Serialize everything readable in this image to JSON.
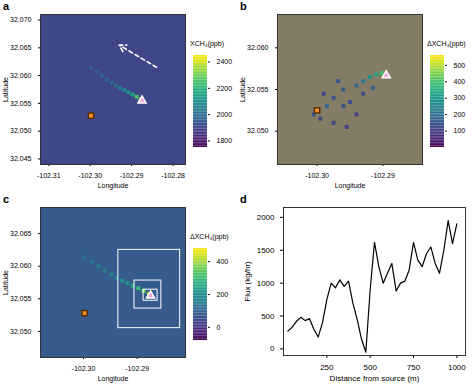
{
  "chart_data": [
    {
      "panel": "a",
      "type": "map",
      "xlabel": "Longitude",
      "ylabel": "Latitude",
      "xlim": [
        -102.312,
        -102.277
      ],
      "xticks": [
        -102.31,
        {
          "value": -102.3,
          "label": "-102.30"
        },
        -102.29,
        -102.28
      ],
      "ylim": [
        32.044,
        32.071
      ],
      "yticks": [
        32.045,
        {
          "value": 32.05,
          "label": "32.050"
        },
        32.055,
        {
          "value": 32.06,
          "label": "32.060"
        },
        32.065,
        {
          "value": 32.07,
          "label": "32.070"
        }
      ],
      "colorbar": {
        "label": "XCH₄(ppb)",
        "lim": [
          1750,
          2450
        ],
        "ticks": [
          1800,
          2000,
          2200,
          2400
        ]
      },
      "background": 1900,
      "points": {
        "x": [
          -102.2878,
          -102.2888,
          -102.2898,
          -102.2908,
          -102.2918,
          -102.2928,
          -102.2938,
          -102.2948,
          -102.296,
          -102.2972,
          -102.2985,
          -102.2998
        ],
        "y": [
          32.0557,
          32.0562,
          32.0566,
          32.057,
          32.0574,
          32.0578,
          32.0582,
          32.0587,
          32.0593,
          32.06,
          32.0607,
          32.0614
        ],
        "values": [
          2350,
          2250,
          2150,
          2100,
          2050,
          2020,
          2000,
          1990,
          1980,
          1970,
          1960,
          1950
        ]
      },
      "source": {
        "x": -102.2998,
        "y": 32.0528
      },
      "detection": {
        "x": -102.2875,
        "y": 32.0555
      },
      "wind": {
        "x1": -102.284,
        "y1": 32.0615,
        "x2": -102.293,
        "y2": 32.0655
      }
    },
    {
      "panel": "b",
      "type": "map",
      "xlabel": "Longitude",
      "ylabel": "Latitude",
      "xlim": [
        -102.306,
        -102.284
      ],
      "xticks": [
        {
          "value": -102.3,
          "label": "-102.30"
        },
        -102.29
      ],
      "ylim": [
        32.046,
        32.064
      ],
      "yticks": [
        {
          "value": 32.05,
          "label": "32.050"
        },
        32.055,
        {
          "value": 32.06,
          "label": "32.060"
        }
      ],
      "colorbar": {
        "label": "ΔXCH₄(ppb)",
        "lim": [
          0,
          560
        ],
        "ticks": [
          100,
          200,
          300,
          400,
          500
        ]
      },
      "points": {
        "x": [
          -102.3005,
          -102.2995,
          -102.2985,
          -102.2975,
          -102.299,
          -102.296,
          -102.295,
          -102.294,
          -102.293,
          -102.292,
          -102.291,
          -102.2902,
          -102.2898,
          -102.294,
          -102.2975,
          -102.2955,
          -102.2968,
          -102.293,
          -102.2915,
          -102.296
        ],
        "y": [
          32.052,
          32.0515,
          32.053,
          32.054,
          32.0545,
          32.055,
          32.0535,
          32.0555,
          32.056,
          32.0565,
          32.0568,
          32.057,
          32.0567,
          32.052,
          32.051,
          32.0505,
          32.056,
          32.0545,
          32.0552,
          32.053
        ],
        "values": [
          150,
          120,
          180,
          140,
          110,
          160,
          130,
          200,
          230,
          280,
          330,
          380,
          420,
          100,
          120,
          110,
          150,
          130,
          170,
          140
        ]
      },
      "source": {
        "x": -102.3,
        "y": 32.0525
      },
      "detection": {
        "x": -102.2895,
        "y": 32.0567
      }
    },
    {
      "panel": "c",
      "type": "map",
      "xlabel": "Longitude",
      "ylabel": "Latitude",
      "xlim": [
        -102.308,
        -102.281
      ],
      "xticks": [
        {
          "value": -102.3,
          "label": "-102.30"
        },
        -102.29
      ],
      "ylim": [
        32.046,
        32.069
      ],
      "yticks": [
        {
          "value": 32.05,
          "label": "32.050"
        },
        32.055,
        {
          "value": 32.06,
          "label": "32.060"
        },
        32.065
      ],
      "colorbar": {
        "label": "ΔXCH₄(ppb)",
        "lim": [
          -80,
          480
        ],
        "ticks": [
          0,
          200,
          400
        ]
      },
      "background": 80,
      "points": {
        "x": [
          -102.2878,
          -102.2888,
          -102.2898,
          -102.2908,
          -102.2918,
          -102.2928,
          -102.2938,
          -102.2948,
          -102.296,
          -102.2972,
          -102.2985,
          -102.2998
        ],
        "y": [
          32.0557,
          32.0562,
          32.0566,
          32.057,
          32.0574,
          32.0578,
          32.0582,
          32.0587,
          32.0593,
          32.06,
          32.0607,
          32.0614
        ],
        "values": [
          420,
          360,
          300,
          260,
          220,
          200,
          180,
          170,
          160,
          150,
          140,
          130
        ]
      },
      "source": {
        "x": -102.2998,
        "y": 32.0528
      },
      "detection": {
        "x": -102.2875,
        "y": 32.0555
      },
      "boxes": [
        [
          -102.2935,
          32.0505,
          -102.282,
          32.0625
        ],
        [
          -102.2905,
          32.0535,
          -102.2855,
          32.0578
        ],
        [
          -102.2888,
          32.0547,
          -102.2862,
          32.0564
        ]
      ]
    },
    {
      "panel": "d",
      "type": "line",
      "xlabel": "Distance from source (m)",
      "ylabel": "Flux (kg/hr)",
      "xlim": [
        0,
        1050
      ],
      "xticks": [
        250,
        500,
        750,
        1000
      ],
      "ylim": [
        -100,
        2150
      ],
      "yticks": [
        0,
        500,
        1000,
        1500,
        2000
      ],
      "x": [
        25,
        50,
        75,
        100,
        125,
        150,
        175,
        200,
        225,
        250,
        275,
        300,
        325,
        350,
        375,
        400,
        425,
        450,
        475,
        500,
        525,
        550,
        575,
        600,
        625,
        650,
        675,
        700,
        725,
        750,
        775,
        800,
        825,
        850,
        875,
        900,
        925,
        950,
        975,
        1000
      ],
      "values": [
        270,
        330,
        420,
        480,
        430,
        460,
        300,
        180,
        400,
        750,
        1000,
        930,
        1050,
        950,
        1030,
        700,
        450,
        150,
        -50,
        900,
        1620,
        1250,
        1000,
        1150,
        1300,
        880,
        1000,
        1030,
        1200,
        1620,
        1350,
        1250,
        1450,
        1550,
        1300,
        1150,
        1500,
        1950,
        1600,
        1900
      ],
      "color": "#000000"
    }
  ]
}
